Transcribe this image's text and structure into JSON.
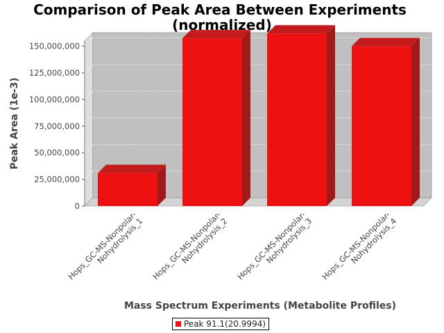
{
  "chart_data": {
    "type": "bar",
    "title_lines": [
      "Comparison of Peak Area Between Experiments",
      "(normalized)"
    ],
    "xlabel": "Mass Spectrum Experiments (Metabolite Profiles)",
    "ylabel": "Peak Area (1e-3)",
    "categories": [
      [
        "Hops_GC-MS-Nonpolar-",
        "Nohydrolysis_1"
      ],
      [
        "Hops_GC-MS-Nonpolar-",
        "Nohydrolysis_2"
      ],
      [
        "Hops_GC-MS-Nonpolar-",
        "Nohydrolysis_3"
      ],
      [
        "Hops_GC-MS-Nonpolar-",
        "Nohydrolysis_4"
      ]
    ],
    "series": [
      {
        "name": "Peak 91.1(20.9994)",
        "values": [
          31000000,
          157500000,
          162000000,
          150000000
        ]
      }
    ],
    "ylim": [
      0,
      155000000
    ],
    "yticks": [
      0,
      25000000,
      50000000,
      75000000,
      100000000,
      125000000,
      150000000
    ],
    "ytick_labels": [
      "0",
      "25,000,000",
      "50,000,000",
      "75,000,000",
      "100,000,000",
      "125,000,000",
      "150,000,000"
    ],
    "grid": true,
    "legend_position": "bottom",
    "colors": {
      "bar_front": "#ee1111",
      "bar_side": "#a11a1a",
      "bar_top": "#c41c1c",
      "plot_bg": "#c0c0c0",
      "wall": "#dedede",
      "floor": "#d4d4d4"
    }
  }
}
